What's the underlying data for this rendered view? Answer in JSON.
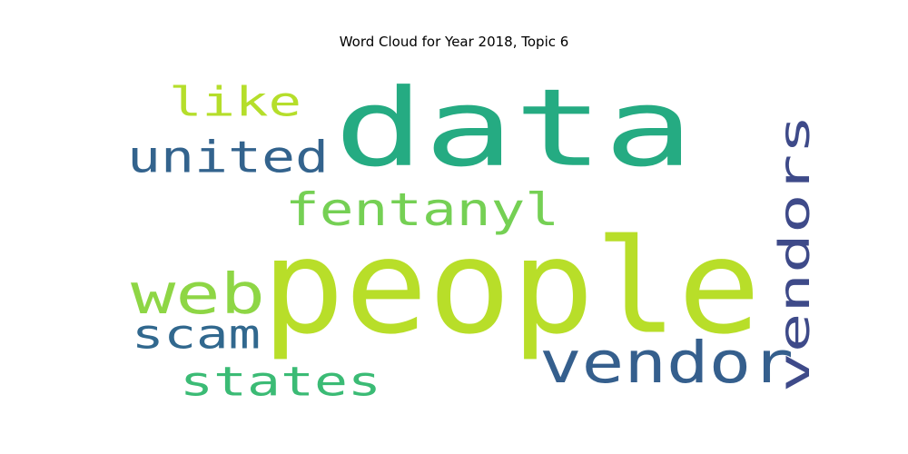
{
  "chart_data": {
    "type": "wordcloud",
    "title": "Word Cloud for Year 2018, Topic 6",
    "words": [
      {
        "text": "data",
        "color": "#25ab82",
        "orientation": "horizontal"
      },
      {
        "text": "people",
        "color": "#b8de29",
        "orientation": "horizontal"
      },
      {
        "text": "vendor",
        "color": "#355f8d",
        "orientation": "horizontal"
      },
      {
        "text": "vendors",
        "color": "#3e4a89",
        "orientation": "vertical"
      },
      {
        "text": "united",
        "color": "#33638d",
        "orientation": "horizontal"
      },
      {
        "text": "like",
        "color": "#b5de2b",
        "orientation": "horizontal"
      },
      {
        "text": "fentanyl",
        "color": "#75d054",
        "orientation": "horizontal"
      },
      {
        "text": "web",
        "color": "#8ed645",
        "orientation": "horizontal"
      },
      {
        "text": "scam",
        "color": "#31688e",
        "orientation": "horizontal"
      },
      {
        "text": "states",
        "color": "#3bbb75",
        "orientation": "horizontal"
      }
    ]
  }
}
